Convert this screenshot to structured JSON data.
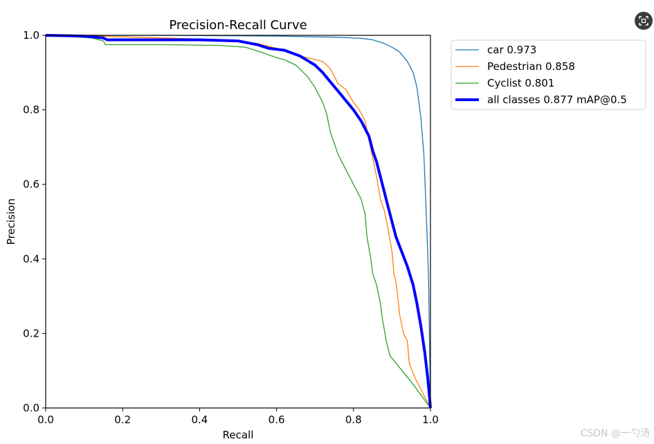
{
  "chart_data": {
    "type": "line",
    "title": "Precision-Recall Curve",
    "xlabel": "Recall",
    "ylabel": "Precision",
    "xlim": [
      0,
      1
    ],
    "ylim": [
      0,
      1
    ],
    "xticks": [
      "0.0",
      "0.2",
      "0.4",
      "0.6",
      "0.8",
      "1.0"
    ],
    "yticks": [
      "0.0",
      "0.2",
      "0.4",
      "0.6",
      "0.8",
      "1.0"
    ],
    "grid": false,
    "legend_position": "outside-top-right",
    "series": [
      {
        "name": "car 0.973",
        "color": "#1f77b4",
        "width": "thin",
        "points": [
          [
            0,
            1.0
          ],
          [
            0.3,
            1.0
          ],
          [
            0.6,
            0.998
          ],
          [
            0.75,
            0.995
          ],
          [
            0.82,
            0.992
          ],
          [
            0.85,
            0.988
          ],
          [
            0.88,
            0.978
          ],
          [
            0.9,
            0.968
          ],
          [
            0.92,
            0.955
          ],
          [
            0.94,
            0.93
          ],
          [
            0.955,
            0.9
          ],
          [
            0.965,
            0.86
          ],
          [
            0.975,
            0.78
          ],
          [
            0.983,
            0.68
          ],
          [
            0.99,
            0.5
          ],
          [
            0.995,
            0.35
          ],
          [
            1.0,
            0.0
          ]
        ]
      },
      {
        "name": "Pedestrian 0.858",
        "color": "#ff7f0e",
        "width": "thin",
        "points": [
          [
            0,
            1.0
          ],
          [
            0.1,
            0.999
          ],
          [
            0.2,
            0.996
          ],
          [
            0.3,
            0.993
          ],
          [
            0.4,
            0.99
          ],
          [
            0.5,
            0.985
          ],
          [
            0.55,
            0.978
          ],
          [
            0.6,
            0.965
          ],
          [
            0.63,
            0.955
          ],
          [
            0.66,
            0.945
          ],
          [
            0.7,
            0.935
          ],
          [
            0.72,
            0.93
          ],
          [
            0.73,
            0.92
          ],
          [
            0.74,
            0.91
          ],
          [
            0.75,
            0.89
          ],
          [
            0.76,
            0.87
          ],
          [
            0.78,
            0.855
          ],
          [
            0.8,
            0.82
          ],
          [
            0.815,
            0.8
          ],
          [
            0.83,
            0.77
          ],
          [
            0.84,
            0.72
          ],
          [
            0.85,
            0.67
          ],
          [
            0.86,
            0.62
          ],
          [
            0.87,
            0.56
          ],
          [
            0.88,
            0.53
          ],
          [
            0.89,
            0.48
          ],
          [
            0.9,
            0.42
          ],
          [
            0.905,
            0.36
          ],
          [
            0.91,
            0.34
          ],
          [
            0.915,
            0.3
          ],
          [
            0.92,
            0.25
          ],
          [
            0.93,
            0.2
          ],
          [
            0.94,
            0.18
          ],
          [
            0.945,
            0.12
          ],
          [
            0.96,
            0.08
          ],
          [
            0.98,
            0.04
          ],
          [
            1.0,
            0.0
          ]
        ]
      },
      {
        "name": "Cyclist 0.801",
        "color": "#2ca02c",
        "width": "thin",
        "points": [
          [
            0,
            1.0
          ],
          [
            0.12,
            0.993
          ],
          [
            0.15,
            0.985
          ],
          [
            0.155,
            0.975
          ],
          [
            0.2,
            0.975
          ],
          [
            0.3,
            0.975
          ],
          [
            0.45,
            0.973
          ],
          [
            0.52,
            0.968
          ],
          [
            0.56,
            0.955
          ],
          [
            0.6,
            0.94
          ],
          [
            0.62,
            0.935
          ],
          [
            0.65,
            0.92
          ],
          [
            0.68,
            0.89
          ],
          [
            0.7,
            0.86
          ],
          [
            0.72,
            0.82
          ],
          [
            0.73,
            0.79
          ],
          [
            0.74,
            0.74
          ],
          [
            0.75,
            0.71
          ],
          [
            0.76,
            0.68
          ],
          [
            0.78,
            0.64
          ],
          [
            0.8,
            0.6
          ],
          [
            0.82,
            0.56
          ],
          [
            0.83,
            0.52
          ],
          [
            0.835,
            0.46
          ],
          [
            0.84,
            0.43
          ],
          [
            0.845,
            0.4
          ],
          [
            0.85,
            0.36
          ],
          [
            0.86,
            0.33
          ],
          [
            0.87,
            0.28
          ],
          [
            0.875,
            0.24
          ],
          [
            0.885,
            0.18
          ],
          [
            0.895,
            0.14
          ],
          [
            0.95,
            0.07
          ],
          [
            1.0,
            0.0
          ]
        ]
      },
      {
        "name": "all classes 0.877 mAP@0.5",
        "color": "#0000ff",
        "width": "thick",
        "points": [
          [
            0,
            1.0
          ],
          [
            0.1,
            0.998
          ],
          [
            0.15,
            0.993
          ],
          [
            0.16,
            0.988
          ],
          [
            0.2,
            0.988
          ],
          [
            0.3,
            0.988
          ],
          [
            0.4,
            0.988
          ],
          [
            0.5,
            0.985
          ],
          [
            0.55,
            0.975
          ],
          [
            0.58,
            0.965
          ],
          [
            0.62,
            0.96
          ],
          [
            0.66,
            0.945
          ],
          [
            0.7,
            0.92
          ],
          [
            0.72,
            0.9
          ],
          [
            0.74,
            0.875
          ],
          [
            0.76,
            0.85
          ],
          [
            0.78,
            0.825
          ],
          [
            0.8,
            0.8
          ],
          [
            0.82,
            0.77
          ],
          [
            0.84,
            0.73
          ],
          [
            0.85,
            0.69
          ],
          [
            0.86,
            0.66
          ],
          [
            0.87,
            0.62
          ],
          [
            0.88,
            0.58
          ],
          [
            0.89,
            0.54
          ],
          [
            0.9,
            0.5
          ],
          [
            0.91,
            0.46
          ],
          [
            0.925,
            0.42
          ],
          [
            0.94,
            0.38
          ],
          [
            0.955,
            0.33
          ],
          [
            0.965,
            0.28
          ],
          [
            0.975,
            0.22
          ],
          [
            0.985,
            0.15
          ],
          [
            0.993,
            0.08
          ],
          [
            1.0,
            0.0
          ]
        ]
      }
    ]
  },
  "watermark": "CSDN @一勺汤",
  "icons": {
    "corner": "screenshot-icon"
  }
}
